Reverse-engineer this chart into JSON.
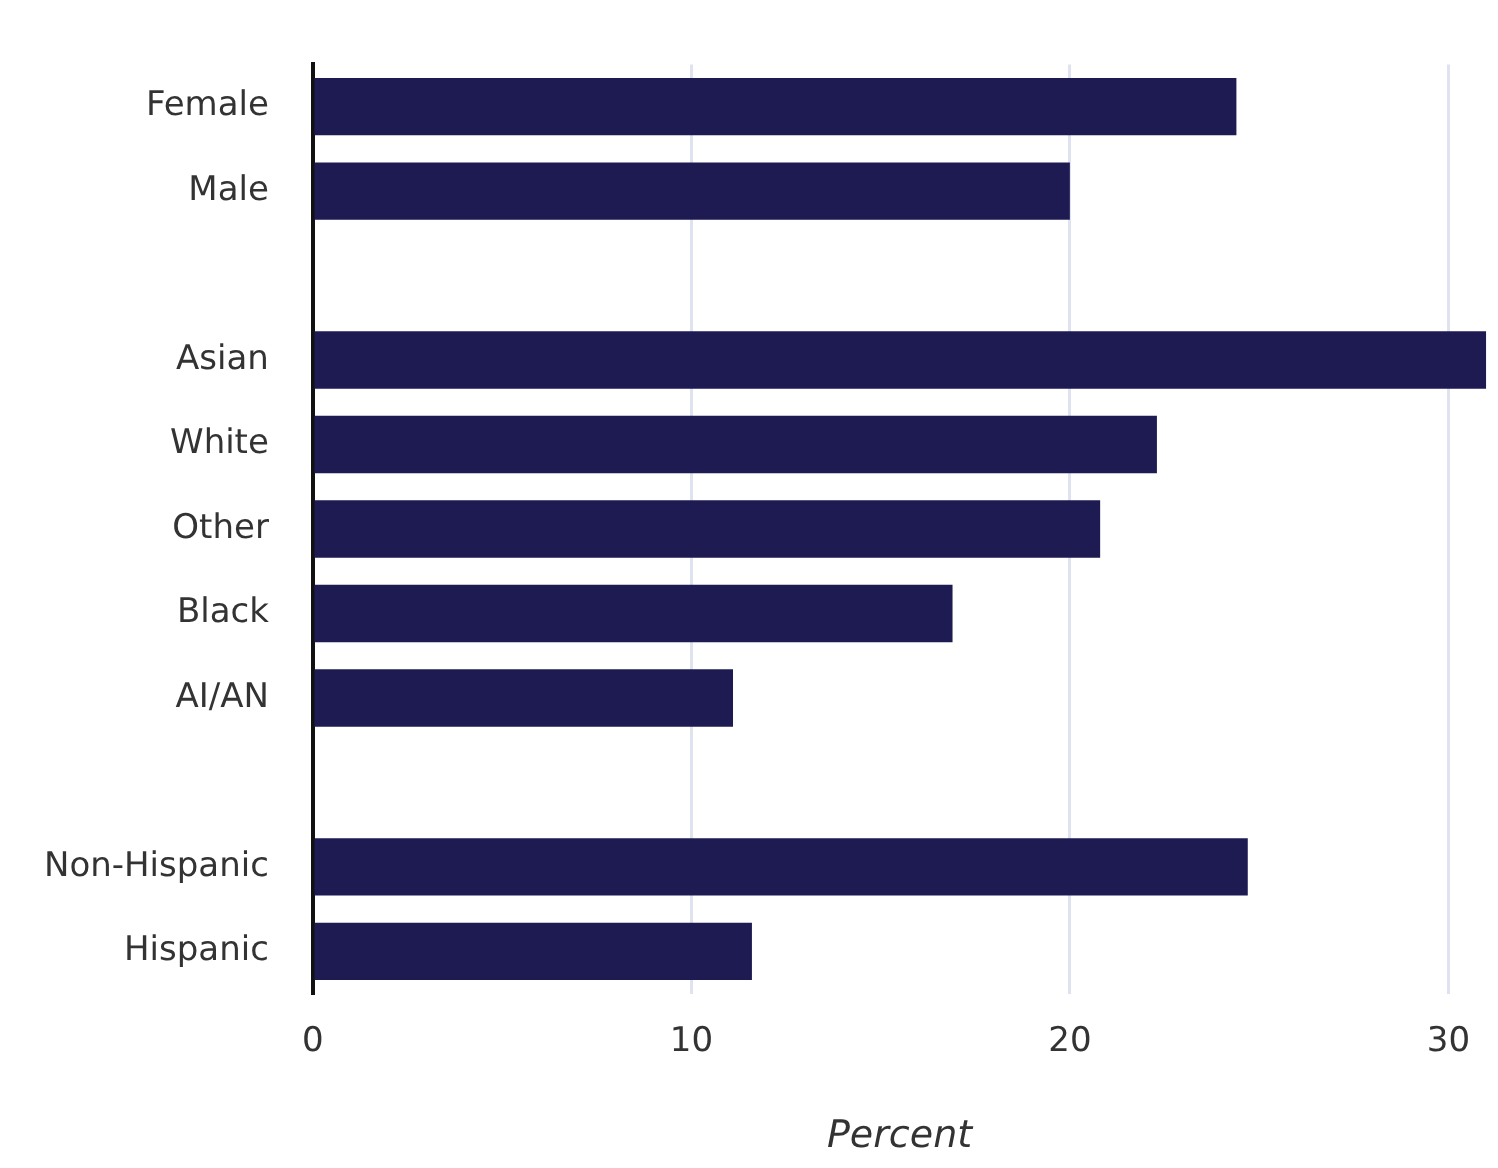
{
  "chart_data": {
    "type": "bar",
    "orientation": "horizontal",
    "xlabel": "Percent",
    "categories": [
      "Female",
      "Male",
      null,
      "Asian",
      "White",
      "Other",
      "Black",
      "AI/AN",
      null,
      "Non-Hispanic",
      "Hispanic"
    ],
    "values": [
      24.4,
      20.0,
      null,
      31,
      22.3,
      20.8,
      16.9,
      11.1,
      null,
      24.7,
      11.6
    ],
    "color": "#1e1b52",
    "xlim": [
      0,
      31
    ],
    "xticks": [
      0,
      10,
      20,
      30
    ],
    "grid": "x",
    "legend": false
  }
}
